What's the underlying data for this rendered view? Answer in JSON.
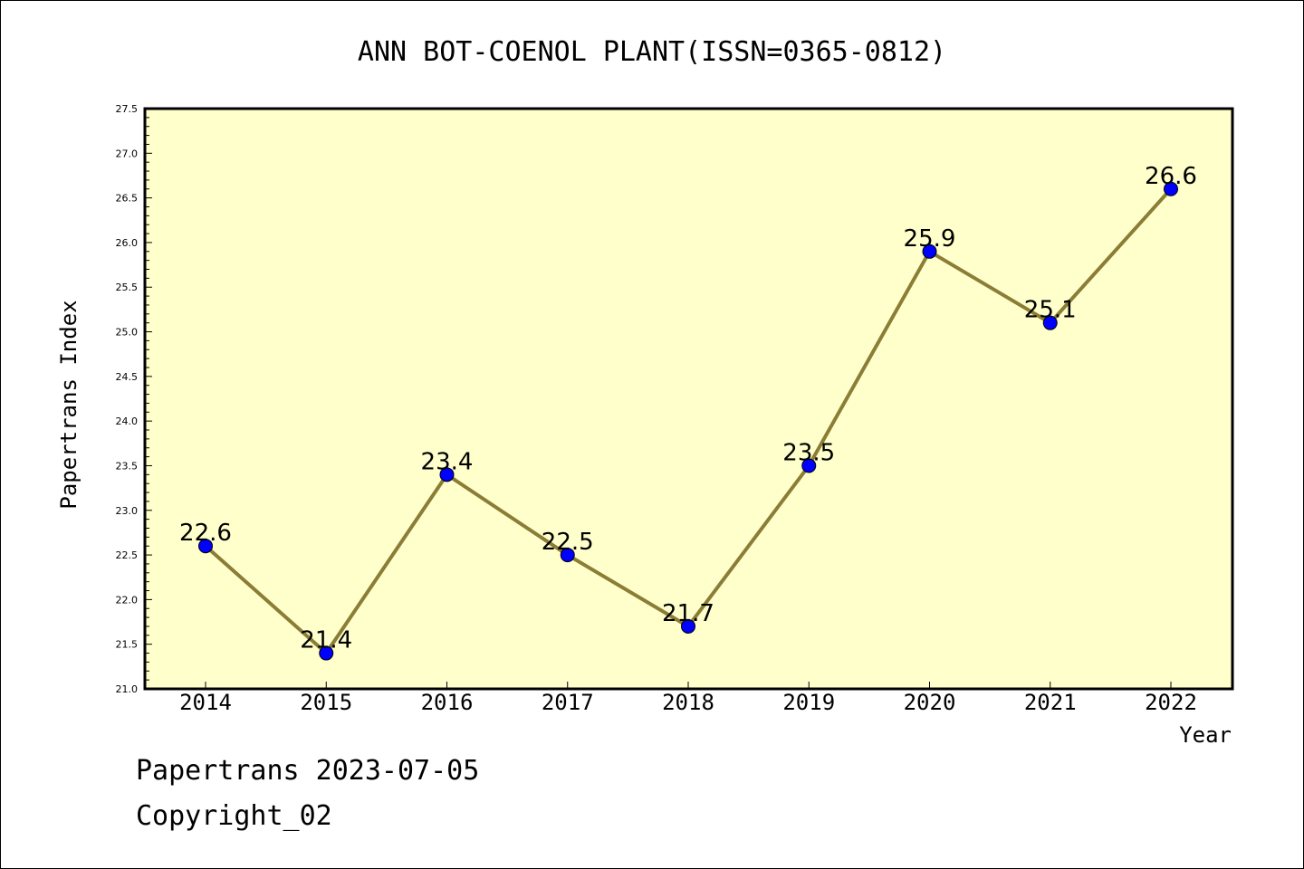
{
  "chart_data": {
    "type": "line",
    "title": "ANN BOT-COENOL PLANT(ISSN=0365-0812)",
    "xlabel": "Year",
    "ylabel": "Papertrans Index",
    "categories": [
      "2014",
      "2015",
      "2016",
      "2017",
      "2018",
      "2019",
      "2020",
      "2021",
      "2022"
    ],
    "series": [
      {
        "values": [
          22.6,
          21.4,
          23.4,
          22.5,
          21.7,
          23.5,
          25.9,
          25.1,
          26.6
        ]
      }
    ],
    "data_labels": [
      "22.6",
      "21.4",
      "23.4",
      "22.5",
      "21.7",
      "23.5",
      "25.9",
      "25.1",
      "26.6"
    ],
    "ylim": [
      21.0,
      27.5
    ],
    "yticks": [
      "21.0",
      "21.5",
      "22.0",
      "22.5",
      "23.0",
      "23.5",
      "24.0",
      "24.5",
      "25.0",
      "25.5",
      "26.0",
      "26.5",
      "27.0",
      "27.5"
    ],
    "grid": false,
    "colors": {
      "plot_bg": "#ffffcc",
      "line": "#8b7d35",
      "marker": "#0000ff"
    }
  },
  "footer": {
    "line1": "Papertrans 2023-07-05",
    "line2": "Copyright_02"
  }
}
